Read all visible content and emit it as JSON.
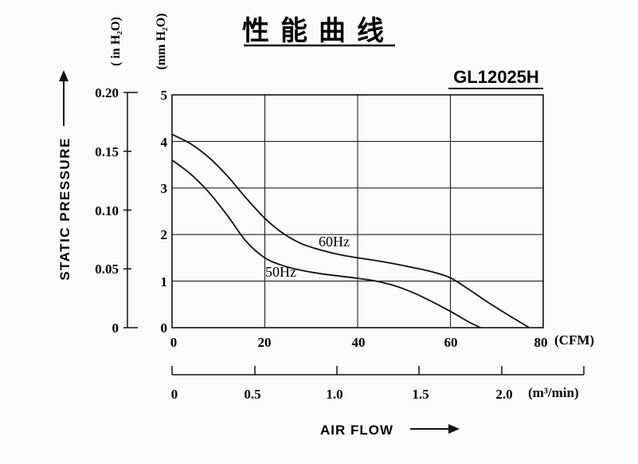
{
  "chart_data": {
    "type": "line",
    "title": "性能曲线",
    "model": "GL12025H",
    "y_axis_label": "STATIC PRESSURE",
    "y_unit_mm": "(mm H₂O)",
    "y_unit_in": "( in  H₂O)",
    "x_axis_label": "AIR FLOW",
    "x_unit_cfm": "(CFM)",
    "x_unit_m3": "(m³/min)",
    "xlim": [
      0,
      80
    ],
    "ylim": [
      0,
      5
    ],
    "grid": true,
    "x_ticks_cfm": [
      "0",
      "20",
      "40",
      "60",
      "80"
    ],
    "y_ticks_mm": [
      "0",
      "1",
      "2",
      "3",
      "4",
      "5"
    ],
    "y_ticks_in": [
      "0",
      "0.05",
      "0.10",
      "0.15",
      "0.20"
    ],
    "x_ticks_m3": [
      "0",
      "0.5",
      "1.0",
      "1.5",
      "2.0"
    ],
    "series": [
      {
        "name": "60Hz",
        "x": [
          0,
          4,
          8,
          12,
          16,
          20,
          24,
          28,
          32,
          36,
          40,
          44,
          48,
          52,
          56,
          60,
          64,
          68,
          72,
          77
        ],
        "y": [
          4.15,
          3.95,
          3.65,
          3.25,
          2.78,
          2.35,
          2.02,
          1.8,
          1.67,
          1.57,
          1.5,
          1.44,
          1.37,
          1.29,
          1.2,
          1.07,
          0.82,
          0.55,
          0.3,
          0.0
        ]
      },
      {
        "name": "50Hz",
        "x": [
          0,
          4,
          8,
          12,
          16,
          20,
          24,
          28,
          32,
          36,
          40,
          44,
          48,
          52,
          56,
          60,
          64,
          66.5
        ],
        "y": [
          3.6,
          3.3,
          2.9,
          2.4,
          1.85,
          1.5,
          1.33,
          1.23,
          1.16,
          1.11,
          1.06,
          1.0,
          0.9,
          0.75,
          0.56,
          0.35,
          0.12,
          0.0
        ]
      }
    ]
  }
}
